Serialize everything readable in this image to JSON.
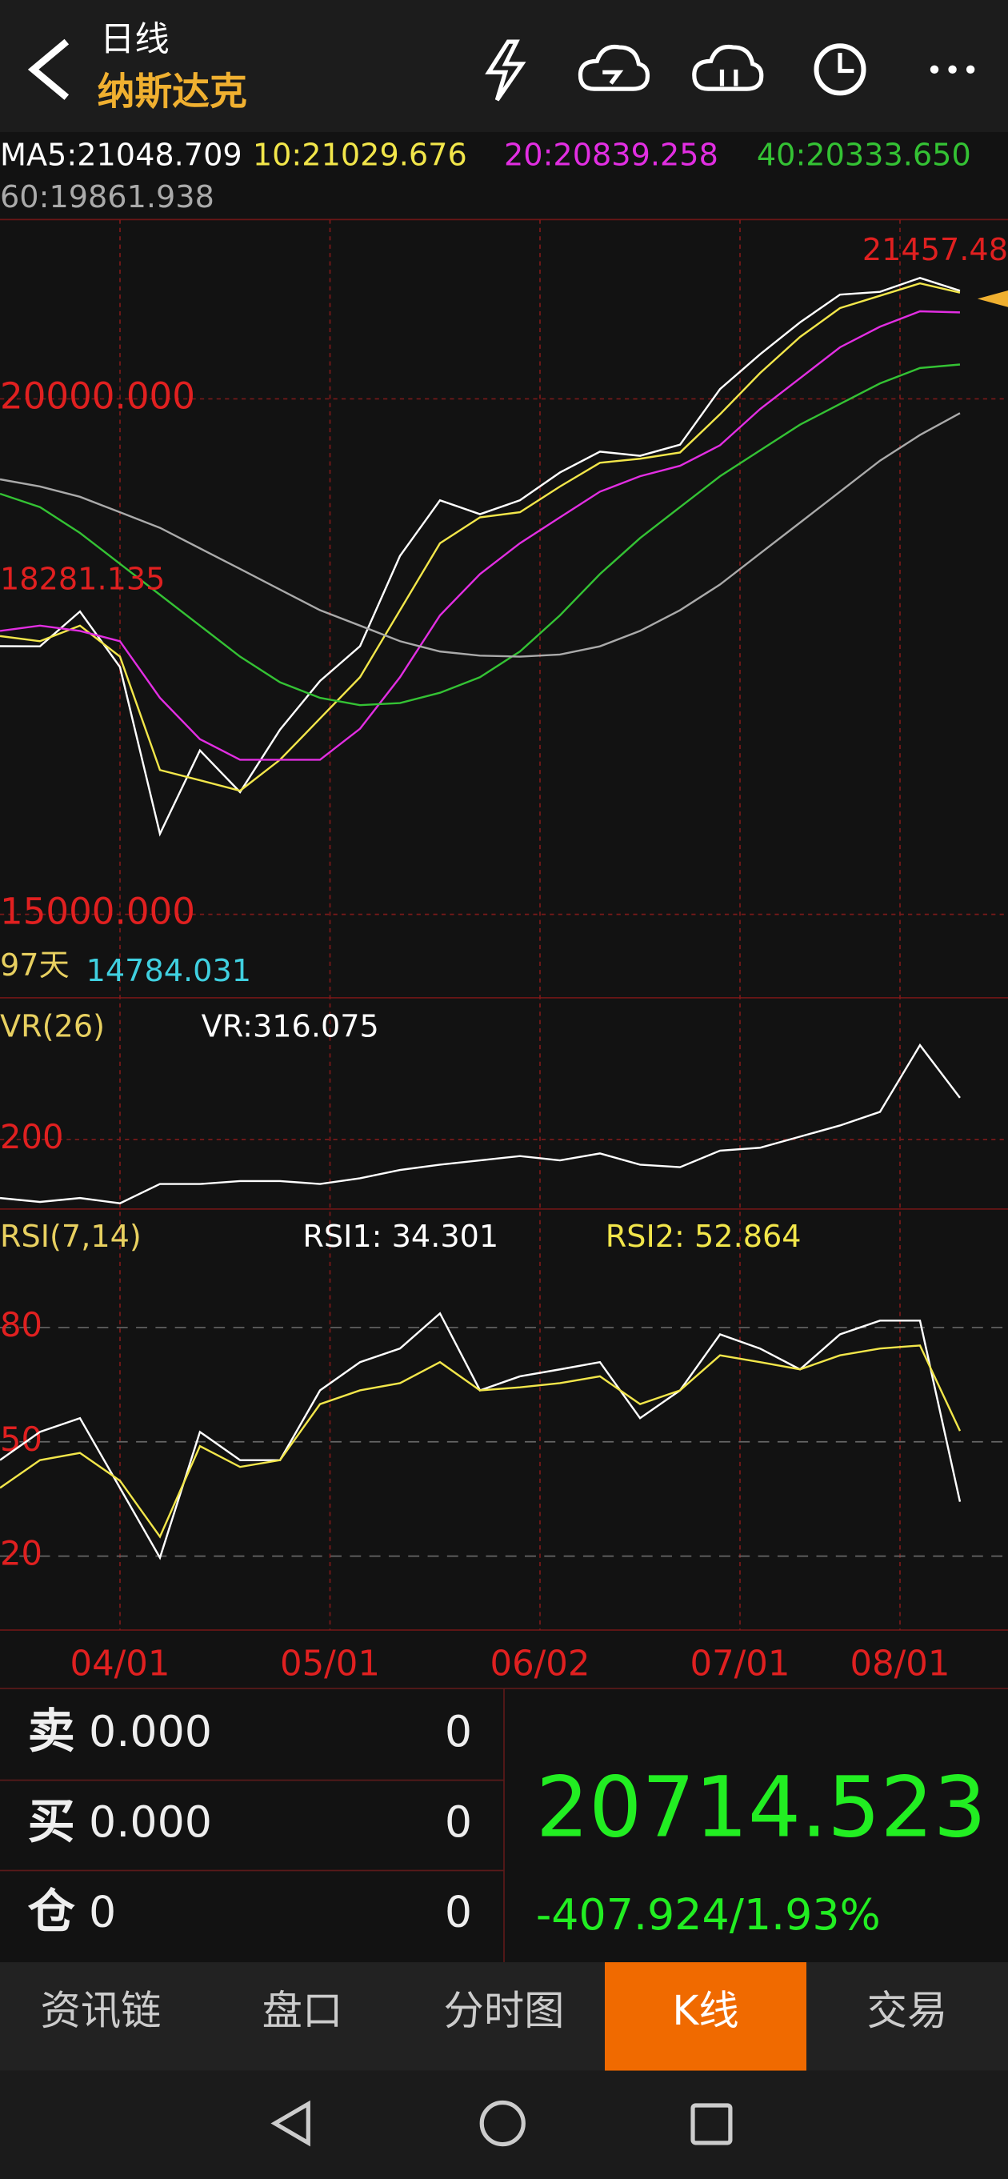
{
  "header": {
    "title": "日线",
    "subtitle": "纳斯达克"
  },
  "chart_data": [
    {
      "type": "line",
      "x": [
        0,
        4,
        8,
        12,
        16,
        20,
        24,
        28,
        32,
        36,
        40,
        44,
        48,
        52,
        56,
        60,
        64,
        68,
        72,
        76,
        80,
        84,
        88,
        92,
        96
      ],
      "xlim": [
        0,
        100.8
      ],
      "xticks": [
        {
          "value": 12,
          "label": "04/01"
        },
        {
          "value": 33,
          "label": "05/01"
        },
        {
          "value": 54,
          "label": "06/02"
        },
        {
          "value": 74,
          "label": "07/01"
        },
        {
          "value": 90,
          "label": "08/01"
        }
      ],
      "ylim": [
        14218,
        21739
      ],
      "yticks": [
        {
          "value": 15000,
          "label": "15000.000"
        },
        {
          "value": 20000,
          "label": "20000.000"
        }
      ],
      "grid": true,
      "annotations": [
        "21457.48",
        "18281.135",
        "97天",
        "14784.031"
      ],
      "series": [
        {
          "name": "MA5:21048.709",
          "color": "#ffffff",
          "values": [
            17601,
            17600,
            17938,
            17399,
            15782,
            16590,
            16186,
            16793,
            17264,
            17601,
            18477,
            19016,
            18881,
            19016,
            19286,
            19488,
            19447,
            19555,
            20094,
            20431,
            20741,
            21011,
            21038,
            21173,
            21048.709
          ]
        },
        {
          "name": "10:21029.676",
          "color": "#f2e64a",
          "values": [
            17700,
            17650,
            17800,
            17500,
            16400,
            16300,
            16200,
            16500,
            16900,
            17300,
            17950,
            18600,
            18850,
            18900,
            19150,
            19380,
            19420,
            19480,
            19850,
            20250,
            20600,
            20880,
            21000,
            21120,
            21029.676
          ]
        },
        {
          "name": "20:20839.258",
          "color": "#e22ee2",
          "values": [
            17750,
            17800,
            17750,
            17650,
            17100,
            16700,
            16500,
            16500,
            16500,
            16800,
            17300,
            17900,
            18300,
            18600,
            18850,
            19100,
            19250,
            19350,
            19550,
            19900,
            20200,
            20500,
            20700,
            20850,
            20839.258
          ]
        },
        {
          "name": "40:20333.650",
          "color": "#34c234",
          "values": [
            19080,
            18950,
            18700,
            18400,
            18100,
            17800,
            17500,
            17250,
            17100,
            17030,
            17050,
            17150,
            17300,
            17550,
            17900,
            18300,
            18650,
            18950,
            19250,
            19500,
            19750,
            19950,
            20150,
            20300,
            20333.65
          ]
        },
        {
          "name": "60:19861.938",
          "color": "#aaaaaa",
          "values": [
            19220,
            19150,
            19050,
            18900,
            18750,
            18550,
            18350,
            18150,
            17950,
            17800,
            17650,
            17550,
            17510,
            17500,
            17520,
            17600,
            17750,
            17950,
            18200,
            18500,
            18800,
            19100,
            19400,
            19650,
            19861.938
          ]
        }
      ]
    },
    {
      "type": "line",
      "title": "VR(26)",
      "x": [
        0,
        4,
        8,
        12,
        16,
        20,
        24,
        28,
        32,
        36,
        40,
        44,
        48,
        52,
        56,
        60,
        64,
        68,
        72,
        76,
        80,
        84,
        88,
        92,
        96
      ],
      "xlim": [
        0,
        100.8
      ],
      "ylim": [
        14,
        595
      ],
      "yticks": [
        200
      ],
      "series": [
        {
          "name": "VR:316.075",
          "color": "#ffffff",
          "values": [
            37,
            26,
            37,
            22,
            76,
            76,
            84,
            84,
            76,
            92,
            115,
            130,
            142,
            154,
            142,
            161,
            130,
            123,
            169,
            177,
            208,
            239,
            277,
            463,
            316.075
          ]
        }
      ]
    },
    {
      "type": "line",
      "title": "RSI(7,14)",
      "x": [
        0,
        4,
        8,
        12,
        16,
        20,
        24,
        28,
        32,
        36,
        40,
        44,
        48,
        52,
        56,
        60,
        64,
        68,
        72,
        76,
        80,
        84,
        88,
        92,
        96
      ],
      "xlim": [
        0,
        100.8
      ],
      "ylim": [
        0.6,
        111.1
      ],
      "yticks": [
        20,
        50,
        80
      ],
      "series": [
        {
          "name": "RSI1: 34.301",
          "color": "#ffffff",
          "values": [
            45.2,
            52.6,
            56.2,
            37.9,
            19.6,
            52.6,
            45.2,
            45.2,
            63.5,
            70.9,
            74.5,
            83.7,
            63.5,
            67.2,
            69,
            70.9,
            56.2,
            63.5,
            78.2,
            74.5,
            69,
            78.2,
            81.8,
            81.8,
            34.301
          ]
        },
        {
          "name": "RSI2: 52.864",
          "color": "#f2e64a",
          "values": [
            37.9,
            45.2,
            47.1,
            39.8,
            25.1,
            48.9,
            43.4,
            45.2,
            59.9,
            63.5,
            65.4,
            70.9,
            63.5,
            64.3,
            65.4,
            67.2,
            59.9,
            63.5,
            72.7,
            70.9,
            69,
            72.7,
            74.5,
            75.3,
            52.864
          ]
        }
      ]
    }
  ],
  "quote": {
    "rows": [
      [
        "卖",
        "0.000",
        "0"
      ],
      [
        "买",
        "0.000",
        "0"
      ],
      [
        "仓",
        "0",
        "0"
      ]
    ],
    "price": "20714.523",
    "change": "-407.924/1.93%"
  },
  "tabs": {
    "items": [
      "资讯链",
      "盘口",
      "分时图",
      "K线",
      "交易"
    ],
    "active": 3
  }
}
